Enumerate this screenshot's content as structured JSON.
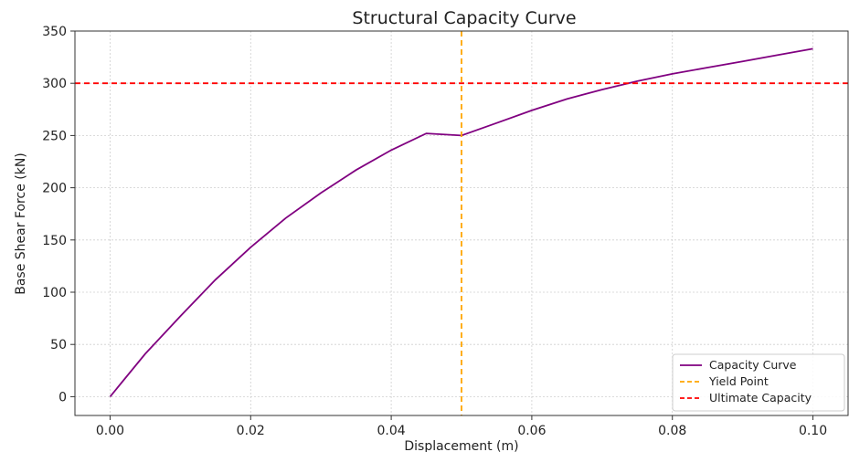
{
  "chart_data": {
    "type": "line",
    "title": "Structural Capacity Curve",
    "xlabel": "Displacement (m)",
    "ylabel": "Base Shear Force (kN)",
    "xlim": [
      -0.005,
      0.105
    ],
    "ylim": [
      -18,
      350
    ],
    "xticks": [
      0.0,
      0.02,
      0.04,
      0.06,
      0.08,
      0.1
    ],
    "xtick_labels": [
      "0.00",
      "0.02",
      "0.04",
      "0.06",
      "0.08",
      "0.10"
    ],
    "yticks": [
      0,
      50,
      100,
      150,
      200,
      250,
      300,
      350
    ],
    "ytick_labels": [
      "0",
      "50",
      "100",
      "150",
      "200",
      "250",
      "300",
      "350"
    ],
    "grid": true,
    "legend_position": "bottom-right",
    "series": [
      {
        "name": "Capacity Curve",
        "color": "#800080",
        "style": "solid",
        "x": [
          0.0,
          0.005,
          0.01,
          0.015,
          0.02,
          0.025,
          0.03,
          0.035,
          0.04,
          0.045,
          0.05,
          0.055,
          0.06,
          0.065,
          0.07,
          0.075,
          0.08,
          0.085,
          0.09,
          0.095,
          0.1
        ],
        "y": [
          0,
          41,
          77,
          112,
          143,
          171,
          195,
          217,
          236,
          252,
          250,
          262,
          274,
          285,
          294,
          302,
          309,
          315,
          321,
          327,
          333
        ]
      }
    ],
    "reference_lines": [
      {
        "name": "Yield Point",
        "orientation": "vertical",
        "value": 0.05,
        "color": "#FFA500",
        "style": "dashed"
      },
      {
        "name": "Ultimate Capacity",
        "orientation": "horizontal",
        "value": 300,
        "color": "#FF0000",
        "style": "dashed"
      }
    ]
  }
}
